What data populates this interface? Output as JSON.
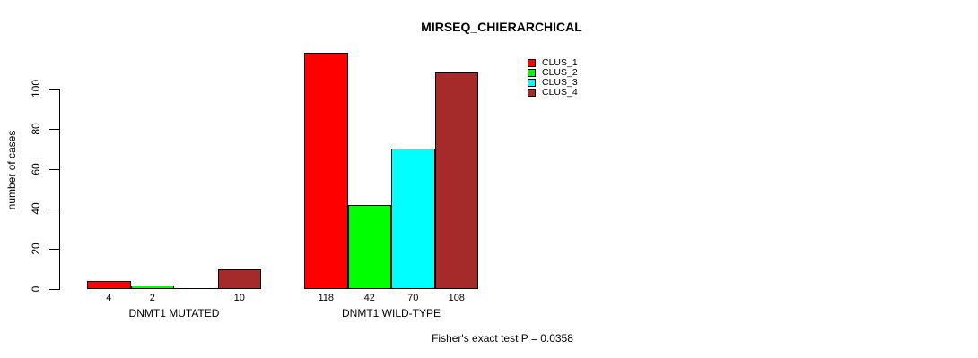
{
  "chart_data": {
    "type": "bar",
    "title": "MIRSEQ_CHIERARCHICAL",
    "ylabel": "number of cases",
    "xlabel": "",
    "categories": [
      "DNMT1 MUTATED",
      "DNMT1 WILD-TYPE"
    ],
    "series": [
      {
        "name": "CLUS_1",
        "color": "#FF0000",
        "values": [
          4,
          118
        ]
      },
      {
        "name": "CLUS_2",
        "color": "#00FF00",
        "values": [
          2,
          42
        ]
      },
      {
        "name": "CLUS_3",
        "color": "#00FFFF",
        "values": [
          0,
          70
        ]
      },
      {
        "name": "CLUS_4",
        "color": "#A52A2A",
        "values": [
          10,
          108
        ]
      }
    ],
    "bar_value_labels": [
      [
        "4",
        "2",
        "",
        "10"
      ],
      [
        "118",
        "42",
        "70",
        "108"
      ]
    ],
    "yticks": [
      0,
      20,
      40,
      60,
      80,
      100
    ],
    "ylim": [
      0,
      118
    ],
    "grid": false,
    "legend_position": "inside-right-of-bars",
    "legend_entries": [
      "CLUS_1",
      "CLUS_2",
      "CLUS_3",
      "CLUS_4"
    ],
    "annotation": "Fisher's exact test P = 0.0358"
  },
  "colors": {
    "background": "#FFFFFF",
    "text": "#000000",
    "bar_border": "#000000"
  }
}
